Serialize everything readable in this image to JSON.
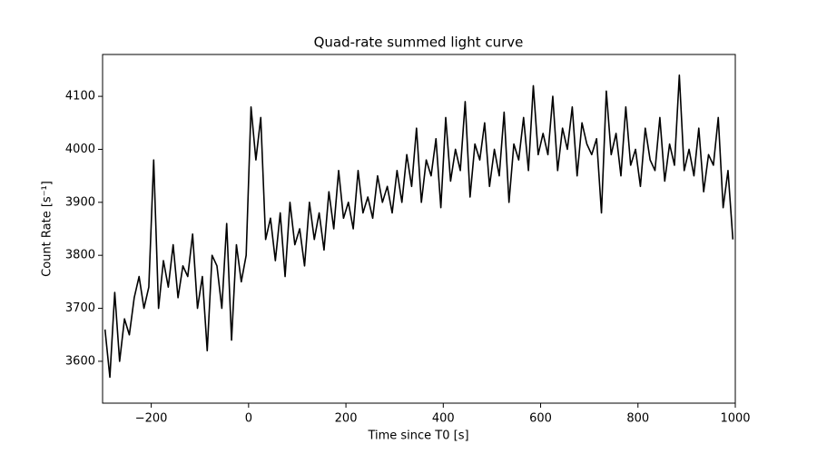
{
  "chart_data": {
    "type": "line",
    "title": "Quad-rate summed light curve",
    "xlabel": "Time since T0 [s]",
    "ylabel": "Count Rate [s⁻¹]",
    "x": [
      -295,
      -285,
      -275,
      -265,
      -255,
      -245,
      -235,
      -225,
      -215,
      -205,
      -195,
      -185,
      -175,
      -165,
      -155,
      -145,
      -135,
      -125,
      -115,
      -105,
      -95,
      -85,
      -75,
      -65,
      -55,
      -45,
      -35,
      -25,
      -15,
      -5,
      5,
      15,
      25,
      35,
      45,
      55,
      65,
      75,
      85,
      95,
      105,
      115,
      125,
      135,
      145,
      155,
      165,
      175,
      185,
      195,
      205,
      215,
      225,
      235,
      245,
      255,
      265,
      275,
      285,
      295,
      305,
      315,
      325,
      335,
      345,
      355,
      365,
      375,
      385,
      395,
      405,
      415,
      425,
      435,
      445,
      455,
      465,
      475,
      485,
      495,
      505,
      515,
      525,
      535,
      545,
      555,
      565,
      575,
      585,
      595,
      605,
      615,
      625,
      635,
      645,
      655,
      665,
      675,
      685,
      695,
      705,
      715,
      725,
      735,
      745,
      755,
      765,
      775,
      785,
      795,
      805,
      815,
      825,
      835,
      845,
      855,
      865,
      875,
      885,
      895,
      905,
      915,
      925,
      935,
      945,
      955,
      965,
      975,
      985,
      995
    ],
    "series": [
      {
        "name": "Quad-rate",
        "color": "#000000",
        "values": [
          3660,
          3570,
          3730,
          3600,
          3680,
          3650,
          3720,
          3760,
          3700,
          3740,
          3980,
          3700,
          3790,
          3740,
          3820,
          3720,
          3780,
          3760,
          3840,
          3700,
          3760,
          3620,
          3800,
          3780,
          3700,
          3860,
          3640,
          3820,
          3750,
          3800,
          4080,
          3980,
          4060,
          3830,
          3870,
          3790,
          3880,
          3760,
          3900,
          3820,
          3850,
          3780,
          3900,
          3830,
          3880,
          3810,
          3920,
          3850,
          3960,
          3870,
          3900,
          3850,
          3960,
          3880,
          3910,
          3870,
          3950,
          3900,
          3930,
          3880,
          3960,
          3900,
          3990,
          3930,
          4040,
          3900,
          3980,
          3950,
          4020,
          3890,
          4060,
          3940,
          4000,
          3960,
          4090,
          3910,
          4010,
          3980,
          4050,
          3930,
          4000,
          3950,
          4070,
          3900,
          4010,
          3980,
          4060,
          3960,
          4120,
          3990,
          4030,
          3990,
          4100,
          3960,
          4040,
          4000,
          4080,
          3950,
          4050,
          4010,
          3990,
          4020,
          3880,
          4110,
          3990,
          4030,
          3950,
          4080,
          3970,
          4000,
          3930,
          4040,
          3980,
          3960,
          4060,
          3940,
          4010,
          3970,
          4140,
          3960,
          4000,
          3950,
          4040,
          3920,
          3990,
          3970,
          4060,
          3890,
          3960,
          3830
        ]
      }
    ],
    "xlim": [
      -300,
      1000
    ],
    "xticks": [
      {
        "value": -200,
        "label": "−200"
      },
      0,
      200,
      400,
      600,
      800,
      1000
    ],
    "ylim": [
      3521,
      4179
    ],
    "yticks": [
      3600,
      3700,
      3800,
      3900,
      4000,
      4100
    ]
  }
}
